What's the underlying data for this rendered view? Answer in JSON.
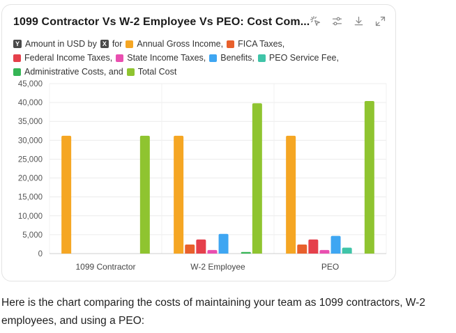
{
  "card": {
    "title": "1099 Contractor Vs W-2 Employee Vs PEO: Cost Com...",
    "tools": [
      {
        "name": "sparkle-cursor-icon"
      },
      {
        "name": "sliders-icon"
      },
      {
        "name": "download-icon"
      },
      {
        "name": "expand-icon"
      }
    ]
  },
  "legend": {
    "y_key": "Y",
    "y_label": "Amount in USD by",
    "x_key": "X",
    "x_label": "for",
    "items": [
      {
        "label": "Annual Gross Income,",
        "color": "#f5a623"
      },
      {
        "label": "FICA Taxes,",
        "color": "#e8602c"
      },
      {
        "label": "Federal Income Taxes,",
        "color": "#e5404b"
      },
      {
        "label": "State Income Taxes,",
        "color": "#e94fb0"
      },
      {
        "label": "Benefits,",
        "color": "#3ea6f2"
      },
      {
        "label": "PEO Service Fee,",
        "color": "#3fc4a8"
      },
      {
        "label": "Administrative Costs, and",
        "color": "#35b555"
      },
      {
        "label": "Total Cost",
        "color": "#8fc430"
      }
    ]
  },
  "chart_data": {
    "type": "bar",
    "title": "1099 Contractor Vs W-2 Employee Vs PEO: Cost Com...",
    "ylabel": "Amount in USD",
    "xlabel": "",
    "ylim": [
      0,
      45000
    ],
    "yticks": [
      "0",
      "5,000",
      "10,000",
      "15,000",
      "20,000",
      "25,000",
      "30,000",
      "35,000",
      "40,000",
      "45,000"
    ],
    "grid": true,
    "categories": [
      "1099 Contractor",
      "W-2 Employee",
      "PEO"
    ],
    "series": [
      {
        "name": "Annual Gross Income",
        "color": "#f5a623",
        "values": [
          31200,
          31200,
          31200
        ]
      },
      {
        "name": "FICA Taxes",
        "color": "#e8602c",
        "values": [
          0,
          2387,
          2387
        ]
      },
      {
        "name": "Federal Income Taxes",
        "color": "#e5404b",
        "values": [
          0,
          3744,
          3744
        ]
      },
      {
        "name": "State Income Taxes",
        "color": "#e94fb0",
        "values": [
          0,
          936,
          936
        ]
      },
      {
        "name": "Benefits",
        "color": "#3ea6f2",
        "values": [
          0,
          5200,
          4680
        ]
      },
      {
        "name": "PEO Service Fee",
        "color": "#3fc4a8",
        "values": [
          0,
          0,
          1560
        ]
      },
      {
        "name": "Administrative Costs",
        "color": "#35b555",
        "values": [
          0,
          416,
          0
        ]
      },
      {
        "name": "Total Cost",
        "color": "#8fc430",
        "values": [
          31200,
          39800,
          40400
        ]
      }
    ]
  },
  "caption": "Here is the chart comparing the costs of maintaining your team as 1099 contractors, W-2 employees, and using a PEO:"
}
